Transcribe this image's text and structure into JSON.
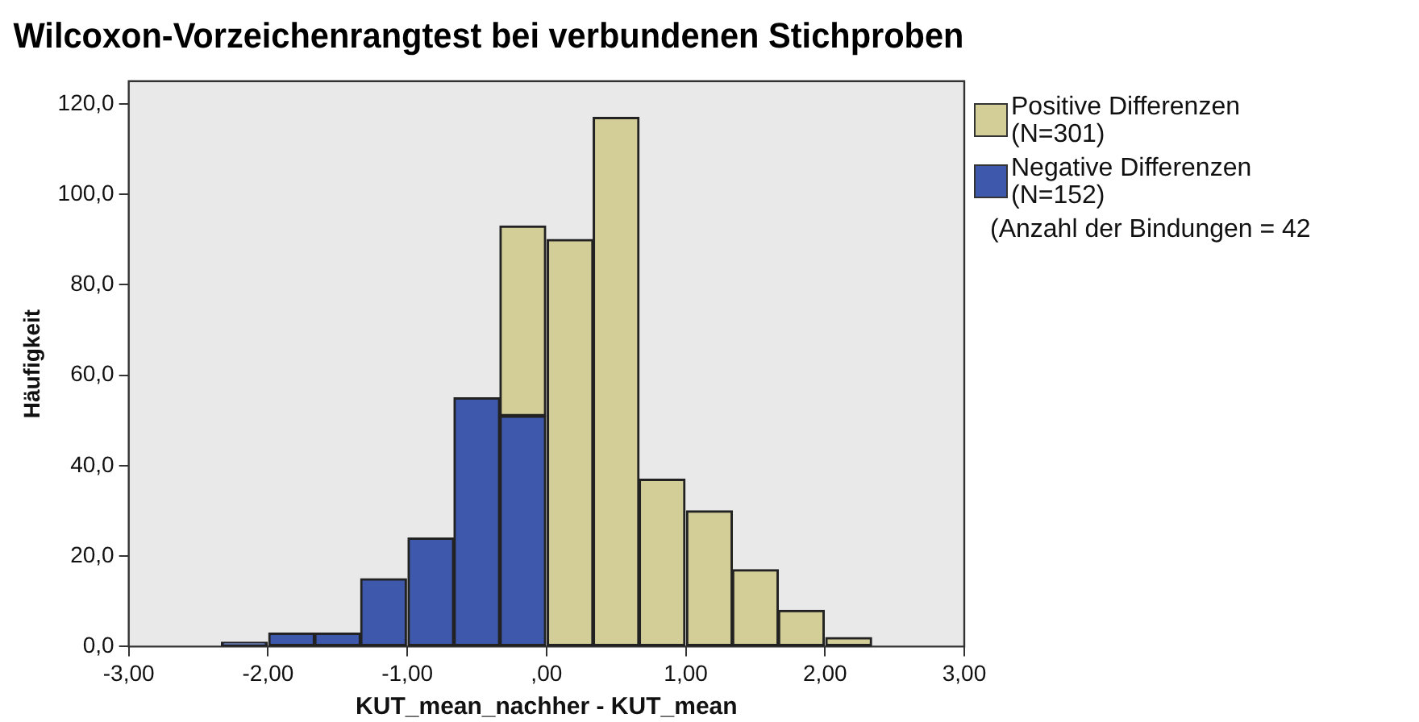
{
  "chart_data": {
    "type": "bar",
    "title": "Wilcoxon-Vorzeichenrangtest bei verbundenen Stichproben",
    "xlabel": "KUT_mean_nachher - KUT_mean",
    "ylabel": "Häufigkeit",
    "x": [
      -2.17,
      -1.83,
      -1.5,
      -1.17,
      -0.83,
      -0.5,
      -0.17,
      0.17,
      0.5,
      0.83,
      1.17,
      1.5,
      1.83,
      2.17
    ],
    "stacked": true,
    "series": [
      {
        "name": "Negative Differenzen (N=152)",
        "color": "#3e58ac",
        "values": [
          1,
          3,
          3,
          15,
          24,
          55,
          51,
          0,
          0,
          0,
          0,
          0,
          0,
          0
        ]
      },
      {
        "name": "Positive Differenzen (N=301)",
        "color": "#d3ce97",
        "values": [
          0,
          0,
          0,
          0,
          0,
          0,
          42,
          90,
          117,
          37,
          30,
          17,
          8,
          2
        ]
      }
    ],
    "xlim": [
      -3,
      3
    ],
    "xticks": [
      {
        "value": -3,
        "label": "-3,00"
      },
      {
        "value": -2,
        "label": "-2,00"
      },
      {
        "value": -1,
        "label": "-1,00"
      },
      {
        "value": 0,
        "label": ",00"
      },
      {
        "value": 1,
        "label": "1,00"
      },
      {
        "value": 2,
        "label": "2,00"
      },
      {
        "value": 3,
        "label": "3,00"
      }
    ],
    "ylim": [
      0,
      125
    ],
    "yticks": [
      {
        "value": 0,
        "label": "0,0"
      },
      {
        "value": 20,
        "label": "20,0"
      },
      {
        "value": 40,
        "label": "40,0"
      },
      {
        "value": 60,
        "label": "60,0"
      },
      {
        "value": 80,
        "label": "80,0"
      },
      {
        "value": 100,
        "label": "100,0"
      },
      {
        "value": 120,
        "label": "120,0"
      }
    ],
    "legend": "right",
    "annotations": [
      "(Anzahl der Bindungen = 42"
    ]
  }
}
